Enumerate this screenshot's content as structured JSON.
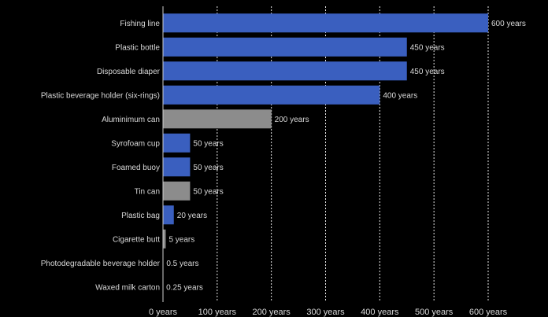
{
  "chart_data": {
    "type": "bar",
    "orientation": "horizontal",
    "categories": [
      "Fishing line",
      "Plastic bottle",
      "Disposable diaper",
      "Plastic beverage holder (six-rings)",
      "Aluminimum can",
      "Syrofoam cup",
      "Foamed buoy",
      "Tin can",
      "Plastic bag",
      "Cigarette butt",
      "Photodegradable beverage holder",
      "Waxed milk carton"
    ],
    "values": [
      600,
      450,
      450,
      400,
      200,
      50,
      50,
      50,
      20,
      5,
      0.5,
      0.25
    ],
    "value_labels": [
      "600 years",
      "450 years",
      "450 years",
      "400 years",
      "200 years",
      "50 years",
      "50 years",
      "50 years",
      "20 years",
      "5 years",
      "0.5 years",
      "0.25 years"
    ],
    "bar_colors": [
      "#3a5fbf",
      "#3a5fbf",
      "#3a5fbf",
      "#3a5fbf",
      "#8c8c8c",
      "#3a5fbf",
      "#3a5fbf",
      "#8c8c8c",
      "#3a5fbf",
      "#8c8c8c",
      "#3a5fbf",
      "#3a5fbf"
    ],
    "xlim": [
      0,
      600
    ],
    "x_ticks": [
      0,
      100,
      200,
      300,
      400,
      500,
      600
    ],
    "x_tick_labels": [
      "0 years",
      "100 years",
      "200 years",
      "300 years",
      "400 years",
      "500 years",
      "600 years"
    ],
    "grid": true,
    "title": "",
    "xlabel": "",
    "ylabel": ""
  }
}
